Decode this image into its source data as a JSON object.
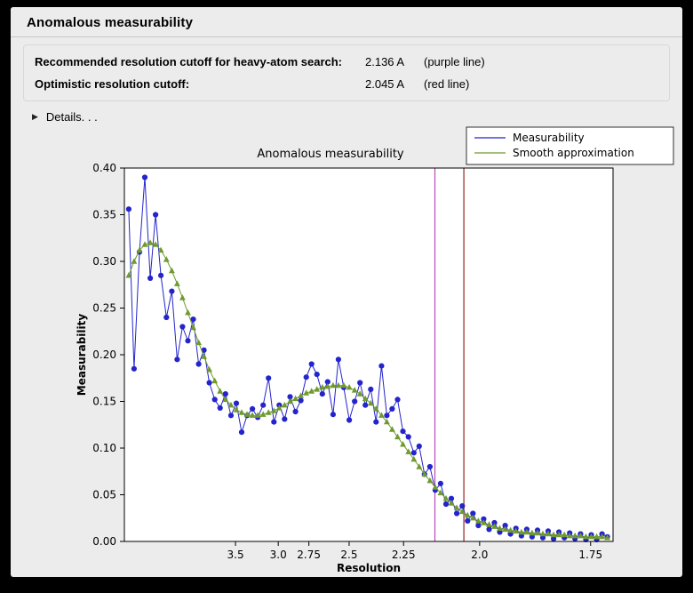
{
  "window": {
    "title": "Anomalous measurability"
  },
  "info": {
    "rows": [
      {
        "label": "Recommended resolution cutoff for heavy-atom search:",
        "value": "2.136 A",
        "note": "(purple line)"
      },
      {
        "label": "Optimistic resolution cutoff:",
        "value": "2.045 A",
        "note": "(red line)"
      }
    ]
  },
  "details": {
    "label": "Details. . ."
  },
  "chart_data": {
    "type": "line",
    "title": "Anomalous measurability",
    "x_axis": {
      "label": "Resolution",
      "scale": "inverse_d_squared",
      "s_range": [
        0.005,
        0.342
      ],
      "ticks": [
        {
          "d": 3.5,
          "label": "3.5"
        },
        {
          "d": 3.0,
          "label": "3.0"
        },
        {
          "d": 2.75,
          "label": "2.75"
        },
        {
          "d": 2.5,
          "label": "2.5"
        },
        {
          "d": 2.25,
          "label": "2.25"
        },
        {
          "d": 2.0,
          "label": "2.0"
        },
        {
          "d": 1.75,
          "label": "1.75"
        }
      ]
    },
    "y_axis": {
      "label": "Measurability",
      "min": 0.0,
      "max": 0.4,
      "tick_step": 0.05
    },
    "x_s": [
      0.008,
      0.0117,
      0.0154,
      0.0191,
      0.0228,
      0.0265,
      0.0302,
      0.034,
      0.0377,
      0.0414,
      0.0451,
      0.0488,
      0.0525,
      0.0562,
      0.0599,
      0.0636,
      0.0673,
      0.071,
      0.0747,
      0.0785,
      0.0822,
      0.0859,
      0.0896,
      0.0933,
      0.097,
      0.1007,
      0.1044,
      0.1081,
      0.1118,
      0.1155,
      0.1193,
      0.123,
      0.1267,
      0.1304,
      0.1341,
      0.1378,
      0.1415,
      0.1452,
      0.1489,
      0.1526,
      0.1563,
      0.1601,
      0.1638,
      0.1675,
      0.1712,
      0.1749,
      0.1786,
      0.1823,
      0.186,
      0.1897,
      0.1934,
      0.1971,
      0.2009,
      0.2046,
      0.2083,
      0.212,
      0.2157,
      0.2194,
      0.2231,
      0.2268,
      0.2305,
      0.2342,
      0.238,
      0.2417,
      0.2454,
      0.2491,
      0.2528,
      0.2565,
      0.2602,
      0.2639,
      0.2676,
      0.2713,
      0.275,
      0.2788,
      0.2825,
      0.2862,
      0.2899,
      0.2936,
      0.2973,
      0.301,
      0.3047,
      0.3084,
      0.3121,
      0.3158,
      0.3196,
      0.3233,
      0.327,
      0.3307,
      0.3344,
      0.3381
    ],
    "series": [
      {
        "name": "Measurability",
        "color": "#2424cc",
        "marker": "circle",
        "values": [
          0.356,
          0.185,
          0.31,
          0.39,
          0.282,
          0.35,
          0.285,
          0.24,
          0.268,
          0.195,
          0.23,
          0.215,
          0.238,
          0.19,
          0.205,
          0.17,
          0.152,
          0.143,
          0.158,
          0.135,
          0.148,
          0.117,
          0.135,
          0.142,
          0.133,
          0.146,
          0.175,
          0.128,
          0.146,
          0.131,
          0.155,
          0.139,
          0.151,
          0.176,
          0.19,
          0.179,
          0.158,
          0.171,
          0.136,
          0.195,
          0.165,
          0.13,
          0.15,
          0.17,
          0.146,
          0.163,
          0.128,
          0.188,
          0.135,
          0.142,
          0.152,
          0.118,
          0.112,
          0.095,
          0.102,
          0.072,
          0.08,
          0.055,
          0.062,
          0.04,
          0.046,
          0.03,
          0.038,
          0.022,
          0.03,
          0.017,
          0.024,
          0.013,
          0.02,
          0.01,
          0.017,
          0.008,
          0.014,
          0.006,
          0.013,
          0.005,
          0.012,
          0.004,
          0.011,
          0.003,
          0.01,
          0.004,
          0.009,
          0.003,
          0.008,
          0.002,
          0.007,
          0.002,
          0.008,
          0.005
        ]
      },
      {
        "name": "Smooth approximation",
        "color": "#6f9a2e",
        "marker": "triangle",
        "values": [
          0.285,
          0.3,
          0.312,
          0.318,
          0.32,
          0.318,
          0.312,
          0.302,
          0.29,
          0.276,
          0.261,
          0.245,
          0.229,
          0.213,
          0.198,
          0.184,
          0.172,
          0.161,
          0.152,
          0.146,
          0.141,
          0.138,
          0.136,
          0.135,
          0.135,
          0.136,
          0.138,
          0.14,
          0.143,
          0.146,
          0.15,
          0.153,
          0.156,
          0.159,
          0.161,
          0.163,
          0.165,
          0.166,
          0.167,
          0.167,
          0.167,
          0.165,
          0.162,
          0.158,
          0.153,
          0.148,
          0.142,
          0.135,
          0.128,
          0.12,
          0.112,
          0.104,
          0.096,
          0.088,
          0.08,
          0.072,
          0.065,
          0.058,
          0.052,
          0.046,
          0.041,
          0.036,
          0.032,
          0.028,
          0.025,
          0.022,
          0.02,
          0.018,
          0.016,
          0.014,
          0.013,
          0.012,
          0.011,
          0.01,
          0.01,
          0.009,
          0.009,
          0.008,
          0.008,
          0.007,
          0.007,
          0.007,
          0.006,
          0.006,
          0.006,
          0.005,
          0.005,
          0.005,
          0.005,
          0.004
        ]
      }
    ],
    "vlines": [
      {
        "resolution": 2.136,
        "color": "#b74ab7",
        "name": "purple line"
      },
      {
        "resolution": 2.045,
        "color": "#97231e",
        "name": "red line"
      }
    ],
    "legend": {
      "position": "top-right",
      "entries": [
        "Measurability",
        "Smooth approximation"
      ]
    }
  }
}
